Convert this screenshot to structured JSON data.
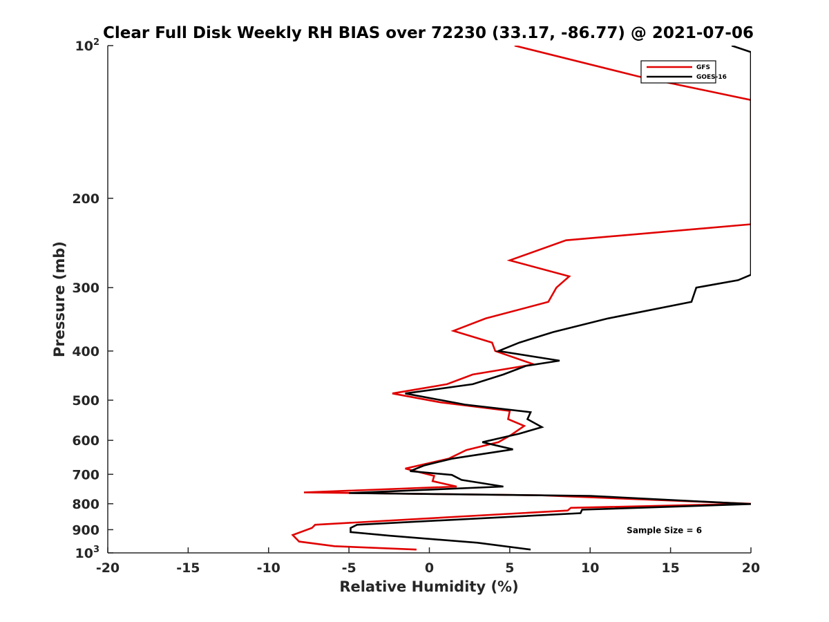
{
  "chart_data": {
    "type": "line",
    "title": "Clear Full Disk Weekly RH BIAS over 72230 (33.17, -86.77) @ 2021-07-06",
    "xlabel": "Relative Humidity (%)",
    "ylabel": "Pressure (mb)",
    "xlim": [
      -20,
      20
    ],
    "ylim": [
      100,
      1000
    ],
    "yscale": "log",
    "y_reversed": true,
    "x_ticks": [
      {
        "value": -20,
        "label": "-20"
      },
      {
        "value": -15,
        "label": "-15"
      },
      {
        "value": -10,
        "label": "-10"
      },
      {
        "value": -5,
        "label": "-5"
      },
      {
        "value": 0,
        "label": "0"
      },
      {
        "value": 5,
        "label": "5"
      },
      {
        "value": 10,
        "label": "10"
      },
      {
        "value": 15,
        "label": "15"
      },
      {
        "value": 20,
        "label": "20"
      }
    ],
    "y_ticks": [
      {
        "value": 100,
        "label": "10",
        "sup": "2"
      },
      {
        "value": 200,
        "label": "200"
      },
      {
        "value": 300,
        "label": "300"
      },
      {
        "value": 400,
        "label": "400"
      },
      {
        "value": 500,
        "label": "500"
      },
      {
        "value": 600,
        "label": "600"
      },
      {
        "value": 700,
        "label": "700"
      },
      {
        "value": 800,
        "label": "800"
      },
      {
        "value": 900,
        "label": "900"
      },
      {
        "value": 1000,
        "label": "10",
        "sup": "3"
      }
    ],
    "series": [
      {
        "name": "GFS",
        "color": "#e00000",
        "points": [
          [
            5.3,
            100
          ],
          [
            13.0,
            115
          ],
          [
            20.0,
            128
          ],
          [
            20.0,
            225
          ],
          [
            8.5,
            242
          ],
          [
            5.0,
            265
          ],
          [
            8.7,
            285
          ],
          [
            7.9,
            300
          ],
          [
            7.4,
            320
          ],
          [
            3.5,
            345
          ],
          [
            1.5,
            365
          ],
          [
            3.9,
            385
          ],
          [
            4.1,
            400
          ],
          [
            6.5,
            425
          ],
          [
            2.7,
            445
          ],
          [
            1.1,
            465
          ],
          [
            -2.3,
            485
          ],
          [
            0.7,
            505
          ],
          [
            5.0,
            525
          ],
          [
            4.9,
            545
          ],
          [
            5.9,
            562
          ],
          [
            5.1,
            585
          ],
          [
            4.3,
            605
          ],
          [
            2.3,
            627
          ],
          [
            1.2,
            652
          ],
          [
            -1.5,
            682
          ],
          [
            0.3,
            705
          ],
          [
            0.2,
            722
          ],
          [
            1.7,
            740
          ],
          [
            -7.8,
            760
          ],
          [
            7.0,
            770
          ],
          [
            20.0,
            800
          ],
          [
            8.8,
            815
          ],
          [
            8.6,
            825
          ],
          [
            -7.1,
            880
          ],
          [
            -7.3,
            893
          ],
          [
            -8.5,
            922
          ],
          [
            -8.1,
            950
          ],
          [
            -5.9,
            970
          ],
          [
            -0.8,
            985
          ]
        ]
      },
      {
        "name": "GOES-16",
        "color": "#000000",
        "points": [
          [
            18.8,
            100
          ],
          [
            20.0,
            103
          ],
          [
            20.0,
            283
          ],
          [
            19.2,
            290
          ],
          [
            16.6,
            300
          ],
          [
            16.3,
            320
          ],
          [
            11.1,
            345
          ],
          [
            7.7,
            367
          ],
          [
            5.6,
            385
          ],
          [
            4.3,
            400
          ],
          [
            8.1,
            418
          ],
          [
            6.0,
            428
          ],
          [
            4.6,
            445
          ],
          [
            2.7,
            465
          ],
          [
            -1.5,
            485
          ],
          [
            2.2,
            510
          ],
          [
            6.3,
            528
          ],
          [
            6.1,
            545
          ],
          [
            7.0,
            565
          ],
          [
            5.6,
            582
          ],
          [
            3.3,
            605
          ],
          [
            5.2,
            625
          ],
          [
            1.4,
            652
          ],
          [
            -0.3,
            672
          ],
          [
            -1.2,
            690
          ],
          [
            1.4,
            702
          ],
          [
            2.0,
            718
          ],
          [
            4.6,
            740
          ],
          [
            -5.0,
            762
          ],
          [
            10.0,
            772
          ],
          [
            20.0,
            801
          ],
          [
            9.5,
            822
          ],
          [
            9.4,
            835
          ],
          [
            -4.5,
            880
          ],
          [
            -4.9,
            893
          ],
          [
            -4.9,
            910
          ],
          [
            -2.5,
            925
          ],
          [
            3.0,
            955
          ],
          [
            6.3,
            985
          ]
        ]
      }
    ],
    "legend": {
      "position": "top-right",
      "entries": [
        "GFS",
        "GOES-16"
      ]
    },
    "annotations": [
      {
        "text": "Sample Size = 6",
        "x": 15.0,
        "y": 900
      }
    ]
  }
}
